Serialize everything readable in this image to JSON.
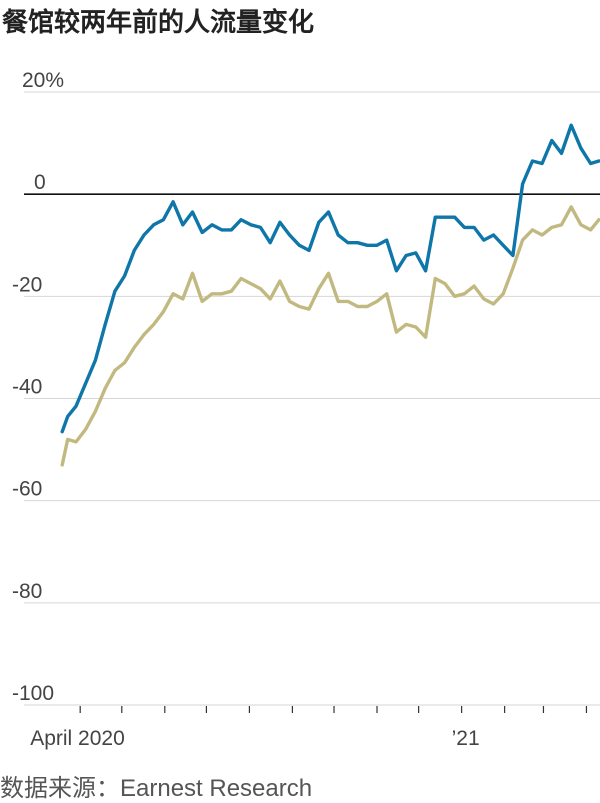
{
  "title": "餐馆较两年前的人流量变化",
  "source": "数据来源：Earnest Research",
  "colors": {
    "series_a": "#0e76a8",
    "series_b": "#c2b980",
    "zero_line": "#111111",
    "grid": "#d6d6d6"
  },
  "chart_data": {
    "type": "line",
    "title": "餐馆较两年前的人流量变化",
    "ylim": [
      -100,
      20
    ],
    "yticks": [
      20,
      0,
      -20,
      -40,
      -60,
      -80,
      -100
    ],
    "ytick_labels": [
      "20%",
      "0",
      "-20",
      "-40",
      "-60",
      "-80",
      "-100"
    ],
    "x_range": [
      "2020-03-16",
      "2021-04-05"
    ],
    "xtick_labels": [
      {
        "date": "2020-04-01",
        "label": "April 2020"
      },
      {
        "date": "2021-01-01",
        "label": "’21"
      }
    ],
    "month_ticks": [
      "2020-04-01",
      "2020-05-01",
      "2020-06-01",
      "2020-07-01",
      "2020-08-01",
      "2020-09-01",
      "2020-10-01",
      "2020-11-01",
      "2020-12-01",
      "2021-01-01",
      "2021-02-01",
      "2021-03-01",
      "2021-04-01"
    ],
    "grid": true,
    "legend": "none",
    "series": [
      {
        "color": "#0e76a8",
        "points": [
          [
            "2020-03-19",
            -46.5
          ],
          [
            "2020-03-23",
            -43.5
          ],
          [
            "2020-03-29",
            -41.5
          ],
          [
            "2020-04-05",
            -37
          ],
          [
            "2020-04-12",
            -32.5
          ],
          [
            "2020-04-19",
            -25.5
          ],
          [
            "2020-04-26",
            -19
          ],
          [
            "2020-05-03",
            -16
          ],
          [
            "2020-05-10",
            -11
          ],
          [
            "2020-05-17",
            -8
          ],
          [
            "2020-05-24",
            -6
          ],
          [
            "2020-05-31",
            -5
          ],
          [
            "2020-06-07",
            -1.5
          ],
          [
            "2020-06-14",
            -6
          ],
          [
            "2020-06-21",
            -3.5
          ],
          [
            "2020-06-28",
            -7.5
          ],
          [
            "2020-07-05",
            -6
          ],
          [
            "2020-07-12",
            -7
          ],
          [
            "2020-07-19",
            -7
          ],
          [
            "2020-07-26",
            -5
          ],
          [
            "2020-08-02",
            -6
          ],
          [
            "2020-08-09",
            -6.5
          ],
          [
            "2020-08-16",
            -9.5
          ],
          [
            "2020-08-23",
            -5.5
          ],
          [
            "2020-08-30",
            -8
          ],
          [
            "2020-09-06",
            -10
          ],
          [
            "2020-09-13",
            -11
          ],
          [
            "2020-09-20",
            -5.5
          ],
          [
            "2020-09-27",
            -3.5
          ],
          [
            "2020-10-04",
            -8
          ],
          [
            "2020-10-11",
            -9.5
          ],
          [
            "2020-10-18",
            -9.5
          ],
          [
            "2020-10-25",
            -10
          ],
          [
            "2020-11-01",
            -10
          ],
          [
            "2020-11-08",
            -9
          ],
          [
            "2020-11-15",
            -15
          ],
          [
            "2020-11-22",
            -12
          ],
          [
            "2020-11-29",
            -11.5
          ],
          [
            "2020-12-06",
            -15
          ],
          [
            "2020-12-13",
            -4.5
          ],
          [
            "2020-12-20",
            -4.5
          ],
          [
            "2020-12-27",
            -4.5
          ],
          [
            "2021-01-03",
            -6.5
          ],
          [
            "2021-01-10",
            -6.5
          ],
          [
            "2021-01-17",
            -9
          ],
          [
            "2021-01-24",
            -8
          ],
          [
            "2021-01-31",
            -10
          ],
          [
            "2021-02-07",
            -12
          ],
          [
            "2021-02-14",
            2
          ],
          [
            "2021-02-21",
            6.5
          ],
          [
            "2021-02-28",
            6
          ],
          [
            "2021-03-07",
            10.5
          ],
          [
            "2021-03-14",
            8
          ],
          [
            "2021-03-21",
            13.5
          ],
          [
            "2021-03-28",
            9
          ],
          [
            "2021-04-04",
            6
          ],
          [
            "2021-04-10",
            6.5
          ]
        ]
      },
      {
        "color": "#c2b980",
        "points": [
          [
            "2020-03-19",
            -53
          ],
          [
            "2020-03-23",
            -48
          ],
          [
            "2020-03-29",
            -48.5
          ],
          [
            "2020-04-05",
            -46
          ],
          [
            "2020-04-12",
            -42.5
          ],
          [
            "2020-04-19",
            -38
          ],
          [
            "2020-04-26",
            -34.5
          ],
          [
            "2020-05-03",
            -33
          ],
          [
            "2020-05-10",
            -30
          ],
          [
            "2020-05-17",
            -27.5
          ],
          [
            "2020-05-24",
            -25.5
          ],
          [
            "2020-05-31",
            -23
          ],
          [
            "2020-06-07",
            -19.5
          ],
          [
            "2020-06-14",
            -20.5
          ],
          [
            "2020-06-21",
            -15.5
          ],
          [
            "2020-06-28",
            -21
          ],
          [
            "2020-07-05",
            -19.5
          ],
          [
            "2020-07-12",
            -19.5
          ],
          [
            "2020-07-19",
            -19
          ],
          [
            "2020-07-26",
            -16.5
          ],
          [
            "2020-08-02",
            -17.5
          ],
          [
            "2020-08-09",
            -18.5
          ],
          [
            "2020-08-16",
            -20.5
          ],
          [
            "2020-08-23",
            -17
          ],
          [
            "2020-08-30",
            -21
          ],
          [
            "2020-09-06",
            -22
          ],
          [
            "2020-09-13",
            -22.5
          ],
          [
            "2020-09-20",
            -18.5
          ],
          [
            "2020-09-27",
            -15.5
          ],
          [
            "2020-10-04",
            -21
          ],
          [
            "2020-10-11",
            -21
          ],
          [
            "2020-10-18",
            -22
          ],
          [
            "2020-10-25",
            -22
          ],
          [
            "2020-11-01",
            -21
          ],
          [
            "2020-11-08",
            -19.5
          ],
          [
            "2020-11-15",
            -27
          ],
          [
            "2020-11-22",
            -25.5
          ],
          [
            "2020-11-29",
            -26
          ],
          [
            "2020-12-06",
            -28
          ],
          [
            "2020-12-13",
            -16.5
          ],
          [
            "2020-12-20",
            -17.5
          ],
          [
            "2020-12-27",
            -20
          ],
          [
            "2021-01-03",
            -19.5
          ],
          [
            "2021-01-10",
            -18
          ],
          [
            "2021-01-17",
            -20.5
          ],
          [
            "2021-01-24",
            -21.5
          ],
          [
            "2021-01-31",
            -19.5
          ],
          [
            "2021-02-07",
            -14.5
          ],
          [
            "2021-02-14",
            -9
          ],
          [
            "2021-02-21",
            -7
          ],
          [
            "2021-02-28",
            -8
          ],
          [
            "2021-03-07",
            -6.5
          ],
          [
            "2021-03-14",
            -6
          ],
          [
            "2021-03-21",
            -2.5
          ],
          [
            "2021-03-28",
            -6
          ],
          [
            "2021-04-04",
            -7
          ],
          [
            "2021-04-10",
            -5
          ]
        ]
      }
    ]
  }
}
